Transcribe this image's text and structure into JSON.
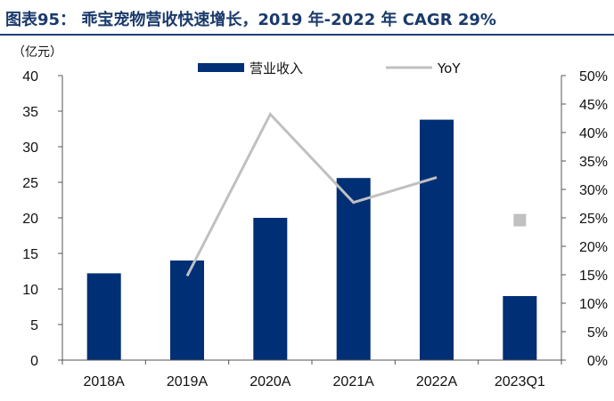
{
  "title": "图表95：  乖宝宠物营收快速增长，2019 年-2022 年 CAGR 29%",
  "chart_data": {
    "type": "bar",
    "title": "图表95：  乖宝宠物营收快速增长，2019 年-2022 年 CAGR 29%",
    "y_unit_label": "（亿元）",
    "categories": [
      "2018A",
      "2019A",
      "2020A",
      "2021A",
      "2022A",
      "2023Q1"
    ],
    "series": [
      {
        "name": "营业收入",
        "type": "bar",
        "axis": "left",
        "color": "#002f75",
        "values": [
          12.2,
          14.0,
          20.0,
          25.6,
          33.8,
          9.0
        ]
      },
      {
        "name": "YoY",
        "type": "line",
        "axis": "right",
        "color": "#c0c0c0",
        "values": [
          null,
          0.148,
          0.432,
          0.277,
          0.321,
          0.246
        ],
        "line_categories": [
          "2019A",
          "2020A",
          "2021A",
          "2022A"
        ],
        "marker_only_categories": [
          "2023Q1"
        ]
      }
    ],
    "y_left": {
      "min": 0,
      "max": 40,
      "step": 5,
      "ticks": [
        "0",
        "5",
        "10",
        "15",
        "20",
        "25",
        "30",
        "35",
        "40"
      ]
    },
    "y_right": {
      "min": 0,
      "max": 0.5,
      "step": 0.05,
      "ticks": [
        "0%",
        "5%",
        "10%",
        "15%",
        "20%",
        "25%",
        "30%",
        "35%",
        "40%",
        "45%",
        "50%"
      ]
    },
    "legend": {
      "position": "top-center",
      "entries": [
        "营业收入",
        "YoY"
      ]
    },
    "grid": false
  }
}
